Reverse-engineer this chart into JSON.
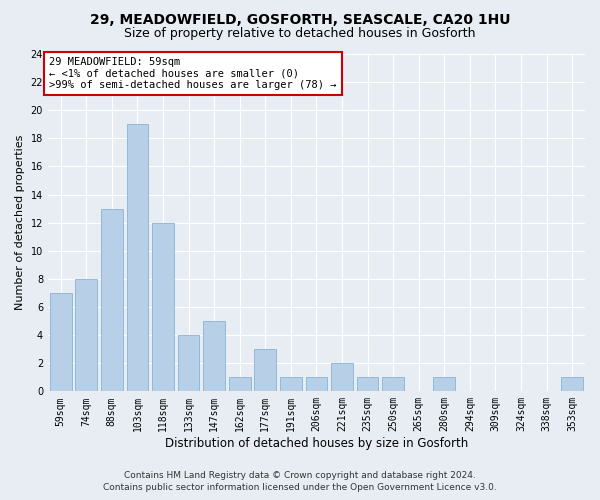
{
  "title_line1": "29, MEADOWFIELD, GOSFORTH, SEASCALE, CA20 1HU",
  "title_line2": "Size of property relative to detached houses in Gosforth",
  "xlabel": "Distribution of detached houses by size in Gosforth",
  "ylabel": "Number of detached properties",
  "categories": [
    "59sqm",
    "74sqm",
    "88sqm",
    "103sqm",
    "118sqm",
    "133sqm",
    "147sqm",
    "162sqm",
    "177sqm",
    "191sqm",
    "206sqm",
    "221sqm",
    "235sqm",
    "250sqm",
    "265sqm",
    "280sqm",
    "294sqm",
    "309sqm",
    "324sqm",
    "338sqm",
    "353sqm"
  ],
  "values": [
    7,
    8,
    13,
    19,
    12,
    4,
    5,
    1,
    3,
    1,
    1,
    2,
    1,
    1,
    0,
    1,
    0,
    0,
    0,
    0,
    1
  ],
  "bar_color": "#b8cfe8",
  "bar_edge_color": "#7aaad0",
  "annotation_text": "29 MEADOWFIELD: 59sqm\n← <1% of detached houses are smaller (0)\n>99% of semi-detached houses are larger (78) →",
  "annotation_box_color": "#ffffff",
  "annotation_box_edge": "#cc0000",
  "ylim": [
    0,
    24
  ],
  "yticks": [
    0,
    2,
    4,
    6,
    8,
    10,
    12,
    14,
    16,
    18,
    20,
    22,
    24
  ],
  "footer_line1": "Contains HM Land Registry data © Crown copyright and database right 2024.",
  "footer_line2": "Contains public sector information licensed under the Open Government Licence v3.0.",
  "bg_color": "#e8edf4",
  "plot_bg_color": "#e8edf4",
  "title_fontsize": 10,
  "subtitle_fontsize": 9,
  "xlabel_fontsize": 8.5,
  "ylabel_fontsize": 8,
  "tick_fontsize": 7,
  "footer_fontsize": 6.5,
  "annotation_fontsize": 7.5
}
